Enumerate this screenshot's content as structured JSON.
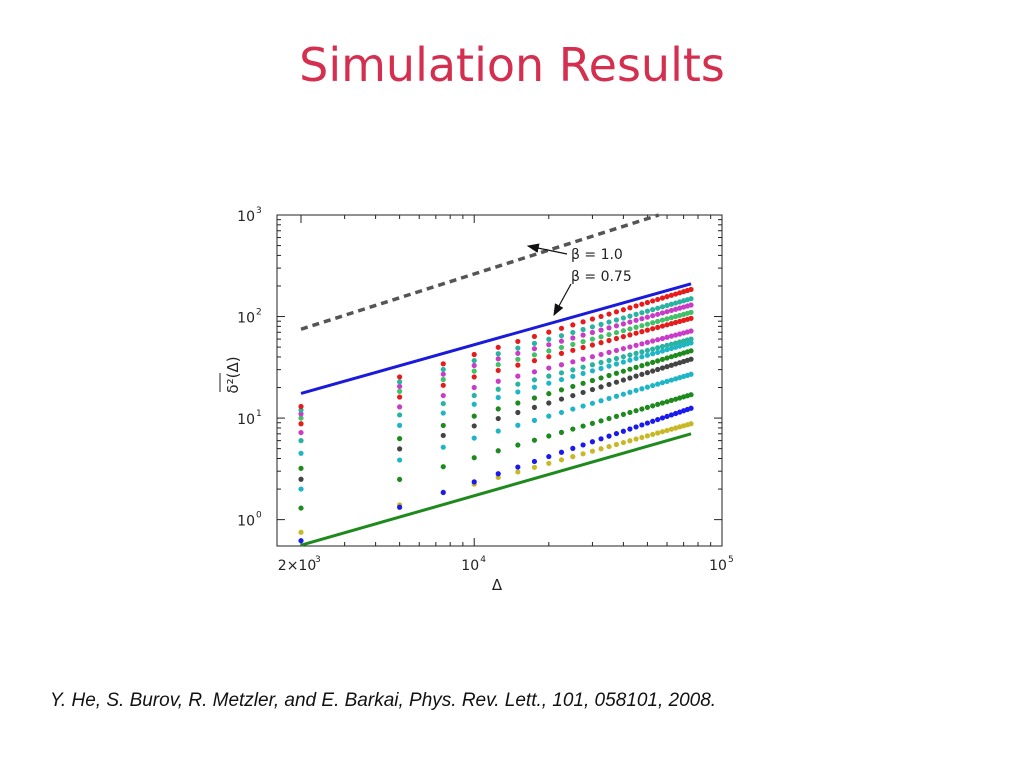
{
  "slide": {
    "title": "Simulation Results",
    "citation": "Y. He, S. Burov, R. Metzler, and E. Barkai, Phys. Rev. Lett., 101, 058101, 2008."
  },
  "colors": {
    "title": "#d42f4f",
    "line_beta_1": "#1a1adc",
    "line_beta_075": "#1e8a1e",
    "dashed": "#555555"
  },
  "chart_data": {
    "type": "scatter",
    "xlog": true,
    "ylog": true,
    "xlim": [
      1600,
      100000
    ],
    "ylim": [
      0.55,
      1000
    ],
    "xlabel": "Δ",
    "ylabel": "δ²(Δ)",
    "xticks": [
      {
        "value": 2000,
        "base": "2×10",
        "exp": "3"
      },
      {
        "value": 10000,
        "base": "10",
        "exp": "4"
      },
      {
        "value": 100000,
        "base": "10",
        "exp": "5"
      }
    ],
    "yticks": [
      {
        "value": 1,
        "base": "10",
        "exp": "0"
      },
      {
        "value": 10,
        "base": "10",
        "exp": "1"
      },
      {
        "value": 100,
        "base": "10",
        "exp": "2"
      },
      {
        "value": 1000,
        "base": "10",
        "exp": "3"
      }
    ],
    "grid": false,
    "reference_lines": [
      {
        "label": "β = 1.0",
        "style": "dashed",
        "color": "#555555",
        "x": [
          2000,
          100000
        ],
        "y": [
          75,
          1580
        ]
      },
      {
        "label": "β = 0.75",
        "style": "solid",
        "color": "#1a1adc",
        "x": [
          2000,
          75000
        ],
        "y": [
          17.5,
          210
        ]
      },
      {
        "label": "",
        "style": "solid",
        "color": "#1e8a1e",
        "x": [
          2000,
          75000
        ],
        "y": [
          0.56,
          7.0
        ]
      }
    ],
    "annotations": [
      {
        "text": "β = 1.0",
        "points_to": "dashed line"
      },
      {
        "text": "β = 0.75",
        "points_to": "blue line"
      }
    ],
    "series_x": [
      2000,
      5000,
      7500,
      10000,
      12500,
      15000,
      17500,
      20000,
      22500,
      25000,
      27500,
      30000,
      32500,
      35000,
      37500,
      40000,
      42500,
      45000,
      47500,
      50000,
      52500,
      55000,
      57500,
      60000,
      62500,
      65000,
      67500,
      70000,
      72500,
      75000
    ],
    "series": [
      {
        "color": "#c9b825",
        "y_start": 0.75,
        "y_end": 8.8
      },
      {
        "color": "#1a1aee",
        "y_start": 0.62,
        "y_end": 12.5
      },
      {
        "color": "#1e8a1e",
        "y_start": 1.3,
        "y_end": 17
      },
      {
        "color": "#1fb5c9",
        "y_start": 2.0,
        "y_end": 27
      },
      {
        "color": "#444444",
        "y_start": 2.5,
        "y_end": 38
      },
      {
        "color": "#1e8a1e",
        "y_start": 3.2,
        "y_end": 46
      },
      {
        "color": "#1fb5c9",
        "y_start": 4.5,
        "y_end": 55
      },
      {
        "color": "#2ab3a0",
        "y_start": 6.0,
        "y_end": 60
      },
      {
        "color": "#c83cc8",
        "y_start": 7.2,
        "y_end": 72
      },
      {
        "color": "#e61c1c",
        "y_start": 8.8,
        "y_end": 96
      },
      {
        "color": "#44c06a",
        "y_start": 10.0,
        "y_end": 110
      },
      {
        "color": "#c83cc8",
        "y_start": 11.0,
        "y_end": 130
      },
      {
        "color": "#2ab3a0",
        "y_start": 12.0,
        "y_end": 150
      },
      {
        "color": "#e61c1c",
        "y_start": 13.0,
        "y_end": 185
      }
    ]
  }
}
